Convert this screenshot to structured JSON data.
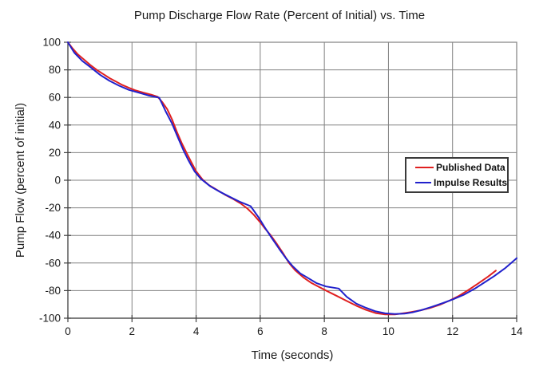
{
  "chart_data": {
    "type": "line",
    "title": "Pump Discharge Flow Rate (Percent of Initial) vs. Time",
    "xlabel": "Time (seconds)",
    "ylabel": "Pump Flow (percent of initial)",
    "xlim": [
      0,
      14
    ],
    "ylim": [
      -100,
      100
    ],
    "x_ticks": [
      0,
      2,
      4,
      6,
      8,
      10,
      12,
      14
    ],
    "y_ticks": [
      100,
      80,
      60,
      40,
      20,
      0,
      -20,
      -40,
      -60,
      -80,
      -100
    ],
    "grid": true,
    "legend_position": "middle-right",
    "background_color": "#ffffff",
    "gridline_color": "#808080",
    "axis_color": "#404040",
    "series": [
      {
        "name": "Published Data",
        "color": "#e02020",
        "points": [
          [
            0,
            100
          ],
          [
            0.15,
            95.5
          ],
          [
            0.3,
            91.5
          ],
          [
            0.5,
            87.5
          ],
          [
            0.7,
            83.5
          ],
          [
            0.9,
            80
          ],
          [
            1.1,
            77
          ],
          [
            1.3,
            74
          ],
          [
            1.5,
            71.5
          ],
          [
            1.7,
            69
          ],
          [
            1.9,
            67
          ],
          [
            2.1,
            65.2
          ],
          [
            2.35,
            63.5
          ],
          [
            2.6,
            62
          ],
          [
            2.8,
            60.5
          ],
          [
            2.95,
            56.5
          ],
          [
            3.1,
            51.5
          ],
          [
            3.25,
            44
          ],
          [
            3.4,
            35
          ],
          [
            3.55,
            27
          ],
          [
            3.7,
            20
          ],
          [
            3.85,
            13
          ],
          [
            4.0,
            6.5
          ],
          [
            4.2,
            0.5
          ],
          [
            4.4,
            -3.5
          ],
          [
            4.65,
            -7
          ],
          [
            4.9,
            -10.5
          ],
          [
            5.15,
            -13.5
          ],
          [
            5.4,
            -17
          ],
          [
            5.6,
            -20.5
          ],
          [
            5.8,
            -25
          ],
          [
            6.0,
            -30.5
          ],
          [
            6.15,
            -35
          ],
          [
            6.33,
            -40
          ],
          [
            6.5,
            -45.5
          ],
          [
            6.7,
            -52.5
          ],
          [
            6.9,
            -60
          ],
          [
            7.1,
            -65.5
          ],
          [
            7.35,
            -70.5
          ],
          [
            7.6,
            -74.5
          ],
          [
            7.85,
            -77.5
          ],
          [
            8.1,
            -80.5
          ],
          [
            8.4,
            -84
          ],
          [
            8.7,
            -87.5
          ],
          [
            9.0,
            -91
          ],
          [
            9.3,
            -94
          ],
          [
            9.6,
            -96.3
          ],
          [
            9.9,
            -97.2
          ],
          [
            10.2,
            -97.2
          ],
          [
            10.45,
            -96.5
          ],
          [
            10.7,
            -95.6
          ],
          [
            11.0,
            -94.3
          ],
          [
            11.3,
            -92.6
          ],
          [
            11.6,
            -90.3
          ],
          [
            11.9,
            -87.3
          ],
          [
            12.2,
            -83.8
          ],
          [
            12.5,
            -79.5
          ],
          [
            12.8,
            -74.8
          ],
          [
            13.1,
            -70
          ],
          [
            13.35,
            -65.5
          ]
        ]
      },
      {
        "name": "Impulse Results",
        "color": "#2121cc",
        "points": [
          [
            0,
            100
          ],
          [
            0.2,
            92.5
          ],
          [
            0.45,
            86.5
          ],
          [
            0.7,
            82
          ],
          [
            1.0,
            76.5
          ],
          [
            1.3,
            72
          ],
          [
            1.6,
            68.5
          ],
          [
            1.9,
            65.5
          ],
          [
            2.2,
            63.5
          ],
          [
            2.5,
            61.5
          ],
          [
            2.85,
            59.8
          ],
          [
            3.05,
            50
          ],
          [
            3.25,
            41
          ],
          [
            3.45,
            30
          ],
          [
            3.6,
            22
          ],
          [
            3.75,
            15
          ],
          [
            3.95,
            6.5
          ],
          [
            4.15,
            1
          ],
          [
            4.45,
            -4.5
          ],
          [
            4.75,
            -8.5
          ],
          [
            5.05,
            -12
          ],
          [
            5.35,
            -15.5
          ],
          [
            5.7,
            -18.8
          ],
          [
            5.95,
            -27
          ],
          [
            6.15,
            -34.5
          ],
          [
            6.35,
            -41.5
          ],
          [
            6.6,
            -50
          ],
          [
            6.8,
            -56.5
          ],
          [
            7.0,
            -62
          ],
          [
            7.25,
            -67.5
          ],
          [
            7.5,
            -71
          ],
          [
            7.75,
            -74.5
          ],
          [
            8.05,
            -77
          ],
          [
            8.45,
            -78.5
          ],
          [
            8.7,
            -84.5
          ],
          [
            9.0,
            -89.5
          ],
          [
            9.3,
            -92.5
          ],
          [
            9.6,
            -95
          ],
          [
            9.9,
            -96.5
          ],
          [
            10.2,
            -97
          ],
          [
            10.5,
            -96.7
          ],
          [
            10.75,
            -95.8
          ],
          [
            11.05,
            -94
          ],
          [
            11.35,
            -91.8
          ],
          [
            11.7,
            -89
          ],
          [
            12.0,
            -86.5
          ],
          [
            12.35,
            -83
          ],
          [
            12.7,
            -78.5
          ],
          [
            13.0,
            -74
          ],
          [
            13.3,
            -69.5
          ],
          [
            13.65,
            -63.5
          ],
          [
            14.0,
            -56.5
          ]
        ]
      }
    ]
  }
}
